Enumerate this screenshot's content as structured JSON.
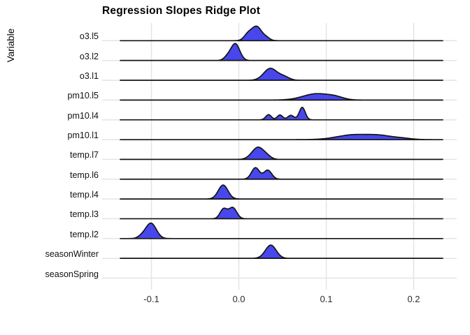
{
  "colors": {
    "ridge_fill": "#4747EC",
    "ridge_stroke": "#141414",
    "grid": "#E4E4E4",
    "axis_text": "#2E2E2E",
    "title_text": "#000000",
    "background": "#FFFFFF"
  },
  "chart_data": {
    "type": "area",
    "subtype": "ridgeline-density",
    "title": "Regression Slopes Ridge Plot",
    "xlabel": "",
    "ylabel": "Variable",
    "x_ticks": [
      -0.1,
      0.0,
      0.1,
      0.2
    ],
    "x_tick_labels": [
      "-0.1",
      "0.0",
      "0.1",
      "0.2"
    ],
    "xlim": [
      -0.156,
      0.249
    ],
    "ridge_x_range": [
      -0.1356,
      0.2332
    ],
    "grid": "major-vertical-and-row-lines",
    "legend_position": "none",
    "variables": [
      {
        "name": "o3.l5",
        "mode": 0.021,
        "components": [
          {
            "mu": 0.0105,
            "sigma": 0.0045,
            "amp": 9
          },
          {
            "mu": 0.0205,
            "sigma": 0.0055,
            "amp": 20
          },
          {
            "mu": 0.0315,
            "sigma": 0.004,
            "amp": 4
          }
        ]
      },
      {
        "name": "o3.l2",
        "mode": -0.004,
        "components": [
          {
            "mu": -0.013,
            "sigma": 0.004,
            "amp": 5
          },
          {
            "mu": -0.004,
            "sigma": 0.005,
            "amp": 24
          }
        ]
      },
      {
        "name": "o3.l1",
        "mode": 0.037,
        "components": [
          {
            "mu": 0.036,
            "sigma": 0.0075,
            "amp": 17
          },
          {
            "mu": 0.0515,
            "sigma": 0.006,
            "amp": 5
          }
        ]
      },
      {
        "name": "pm10.l5",
        "mode": 0.092,
        "components": [
          {
            "mu": 0.089,
            "sigma": 0.0155,
            "amp": 9
          },
          {
            "mu": 0.111,
            "sigma": 0.009,
            "amp": 3
          }
        ]
      },
      {
        "name": "pm10.l4",
        "mode": 0.073,
        "components": [
          {
            "mu": 0.034,
            "sigma": 0.0032,
            "amp": 7.5
          },
          {
            "mu": 0.047,
            "sigma": 0.0032,
            "amp": 7
          },
          {
            "mu": 0.0595,
            "sigma": 0.0035,
            "amp": 6.5
          },
          {
            "mu": 0.0725,
            "sigma": 0.0034,
            "amp": 18
          }
        ]
      },
      {
        "name": "pm10.l1",
        "mode": 0.145,
        "components": [
          {
            "mu": 0.132,
            "sigma": 0.019,
            "amp": 7
          },
          {
            "mu": 0.162,
            "sigma": 0.013,
            "amp": 4.5
          },
          {
            "mu": 0.186,
            "sigma": 0.011,
            "amp": 2
          }
        ]
      },
      {
        "name": "temp.l7",
        "mode": 0.023,
        "components": [
          {
            "mu": 0.022,
            "sigma": 0.007,
            "amp": 17.5
          },
          {
            "mu": 0.033,
            "sigma": 0.0045,
            "amp": 2.5
          }
        ]
      },
      {
        "name": "temp.l6",
        "mode": 0.019,
        "components": [
          {
            "mu": 0.019,
            "sigma": 0.0045,
            "amp": 16.5
          },
          {
            "mu": 0.033,
            "sigma": 0.0045,
            "amp": 13
          }
        ]
      },
      {
        "name": "temp.l4",
        "mode": -0.018,
        "components": [
          {
            "mu": -0.018,
            "sigma": 0.0055,
            "amp": 20
          }
        ]
      },
      {
        "name": "temp.l3",
        "mode": -0.008,
        "components": [
          {
            "mu": -0.0175,
            "sigma": 0.004,
            "amp": 14
          },
          {
            "mu": -0.007,
            "sigma": 0.0045,
            "amp": 16
          }
        ]
      },
      {
        "name": "temp.l2",
        "mode": -0.101,
        "components": [
          {
            "mu": -0.1005,
            "sigma": 0.006,
            "amp": 22
          },
          {
            "mu": -0.111,
            "sigma": 0.0045,
            "amp": 3
          }
        ]
      },
      {
        "name": "seasonWinter",
        "mode": 0.037,
        "components": [
          {
            "mu": 0.0365,
            "sigma": 0.0062,
            "amp": 19
          }
        ]
      },
      {
        "name": "seasonSpring",
        "mode": null,
        "components": []
      }
    ]
  }
}
